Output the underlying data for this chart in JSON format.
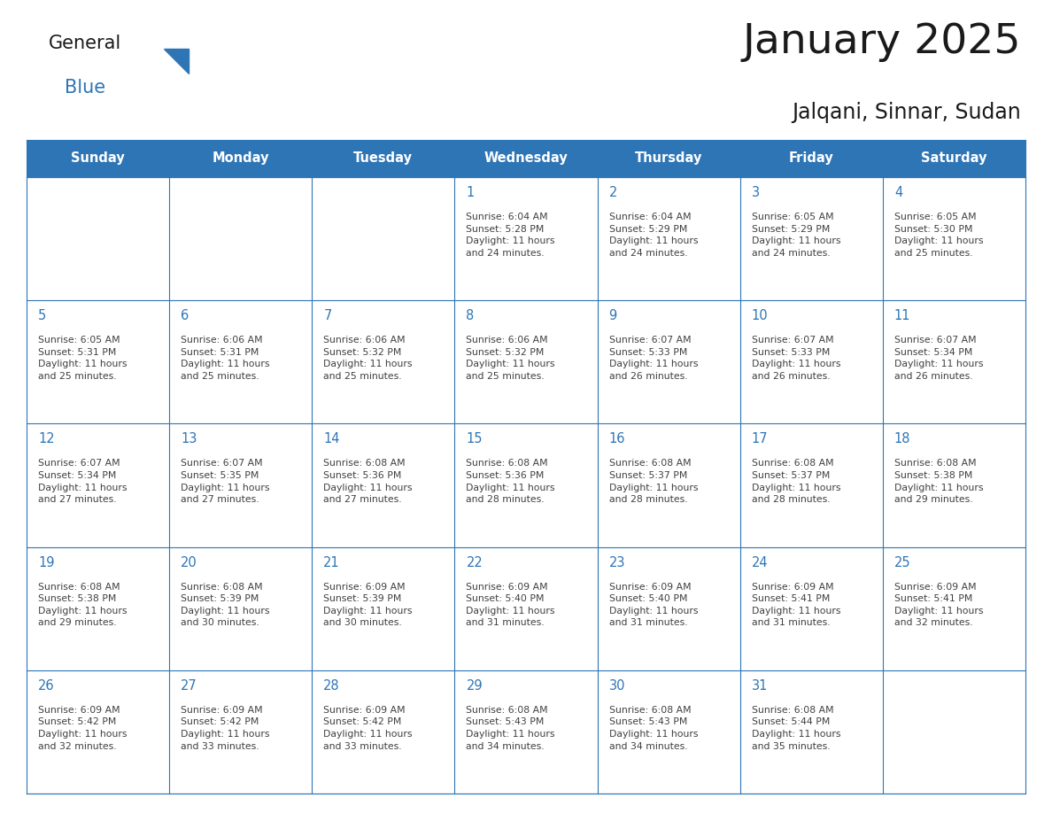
{
  "title": "January 2025",
  "subtitle": "Jalqani, Sinnar, Sudan",
  "days_of_week": [
    "Sunday",
    "Monday",
    "Tuesday",
    "Wednesday",
    "Thursday",
    "Friday",
    "Saturday"
  ],
  "header_bg": "#2E75B6",
  "header_text": "#FFFFFF",
  "cell_bg": "#FFFFFF",
  "border_color": "#2E75B6",
  "day_num_color": "#2E75B6",
  "cell_text_color": "#404040",
  "title_color": "#1a1a1a",
  "subtitle_color": "#1a1a1a",
  "logo_general_color": "#1a1a1a",
  "logo_blue_color": "#2E75B6",
  "calendar_data": [
    [
      null,
      null,
      null,
      {
        "day": 1,
        "sunrise": "6:04 AM",
        "sunset": "5:28 PM",
        "daylight": "11 hours\nand 24 minutes."
      },
      {
        "day": 2,
        "sunrise": "6:04 AM",
        "sunset": "5:29 PM",
        "daylight": "11 hours\nand 24 minutes."
      },
      {
        "day": 3,
        "sunrise": "6:05 AM",
        "sunset": "5:29 PM",
        "daylight": "11 hours\nand 24 minutes."
      },
      {
        "day": 4,
        "sunrise": "6:05 AM",
        "sunset": "5:30 PM",
        "daylight": "11 hours\nand 25 minutes."
      }
    ],
    [
      {
        "day": 5,
        "sunrise": "6:05 AM",
        "sunset": "5:31 PM",
        "daylight": "11 hours\nand 25 minutes."
      },
      {
        "day": 6,
        "sunrise": "6:06 AM",
        "sunset": "5:31 PM",
        "daylight": "11 hours\nand 25 minutes."
      },
      {
        "day": 7,
        "sunrise": "6:06 AM",
        "sunset": "5:32 PM",
        "daylight": "11 hours\nand 25 minutes."
      },
      {
        "day": 8,
        "sunrise": "6:06 AM",
        "sunset": "5:32 PM",
        "daylight": "11 hours\nand 25 minutes."
      },
      {
        "day": 9,
        "sunrise": "6:07 AM",
        "sunset": "5:33 PM",
        "daylight": "11 hours\nand 26 minutes."
      },
      {
        "day": 10,
        "sunrise": "6:07 AM",
        "sunset": "5:33 PM",
        "daylight": "11 hours\nand 26 minutes."
      },
      {
        "day": 11,
        "sunrise": "6:07 AM",
        "sunset": "5:34 PM",
        "daylight": "11 hours\nand 26 minutes."
      }
    ],
    [
      {
        "day": 12,
        "sunrise": "6:07 AM",
        "sunset": "5:34 PM",
        "daylight": "11 hours\nand 27 minutes."
      },
      {
        "day": 13,
        "sunrise": "6:07 AM",
        "sunset": "5:35 PM",
        "daylight": "11 hours\nand 27 minutes."
      },
      {
        "day": 14,
        "sunrise": "6:08 AM",
        "sunset": "5:36 PM",
        "daylight": "11 hours\nand 27 minutes."
      },
      {
        "day": 15,
        "sunrise": "6:08 AM",
        "sunset": "5:36 PM",
        "daylight": "11 hours\nand 28 minutes."
      },
      {
        "day": 16,
        "sunrise": "6:08 AM",
        "sunset": "5:37 PM",
        "daylight": "11 hours\nand 28 minutes."
      },
      {
        "day": 17,
        "sunrise": "6:08 AM",
        "sunset": "5:37 PM",
        "daylight": "11 hours\nand 28 minutes."
      },
      {
        "day": 18,
        "sunrise": "6:08 AM",
        "sunset": "5:38 PM",
        "daylight": "11 hours\nand 29 minutes."
      }
    ],
    [
      {
        "day": 19,
        "sunrise": "6:08 AM",
        "sunset": "5:38 PM",
        "daylight": "11 hours\nand 29 minutes."
      },
      {
        "day": 20,
        "sunrise": "6:08 AM",
        "sunset": "5:39 PM",
        "daylight": "11 hours\nand 30 minutes."
      },
      {
        "day": 21,
        "sunrise": "6:09 AM",
        "sunset": "5:39 PM",
        "daylight": "11 hours\nand 30 minutes."
      },
      {
        "day": 22,
        "sunrise": "6:09 AM",
        "sunset": "5:40 PM",
        "daylight": "11 hours\nand 31 minutes."
      },
      {
        "day": 23,
        "sunrise": "6:09 AM",
        "sunset": "5:40 PM",
        "daylight": "11 hours\nand 31 minutes."
      },
      {
        "day": 24,
        "sunrise": "6:09 AM",
        "sunset": "5:41 PM",
        "daylight": "11 hours\nand 31 minutes."
      },
      {
        "day": 25,
        "sunrise": "6:09 AM",
        "sunset": "5:41 PM",
        "daylight": "11 hours\nand 32 minutes."
      }
    ],
    [
      {
        "day": 26,
        "sunrise": "6:09 AM",
        "sunset": "5:42 PM",
        "daylight": "11 hours\nand 32 minutes."
      },
      {
        "day": 27,
        "sunrise": "6:09 AM",
        "sunset": "5:42 PM",
        "daylight": "11 hours\nand 33 minutes."
      },
      {
        "day": 28,
        "sunrise": "6:09 AM",
        "sunset": "5:42 PM",
        "daylight": "11 hours\nand 33 minutes."
      },
      {
        "day": 29,
        "sunrise": "6:08 AM",
        "sunset": "5:43 PM",
        "daylight": "11 hours\nand 34 minutes."
      },
      {
        "day": 30,
        "sunrise": "6:08 AM",
        "sunset": "5:43 PM",
        "daylight": "11 hours\nand 34 minutes."
      },
      {
        "day": 31,
        "sunrise": "6:08 AM",
        "sunset": "5:44 PM",
        "daylight": "11 hours\nand 35 minutes."
      },
      null
    ]
  ]
}
